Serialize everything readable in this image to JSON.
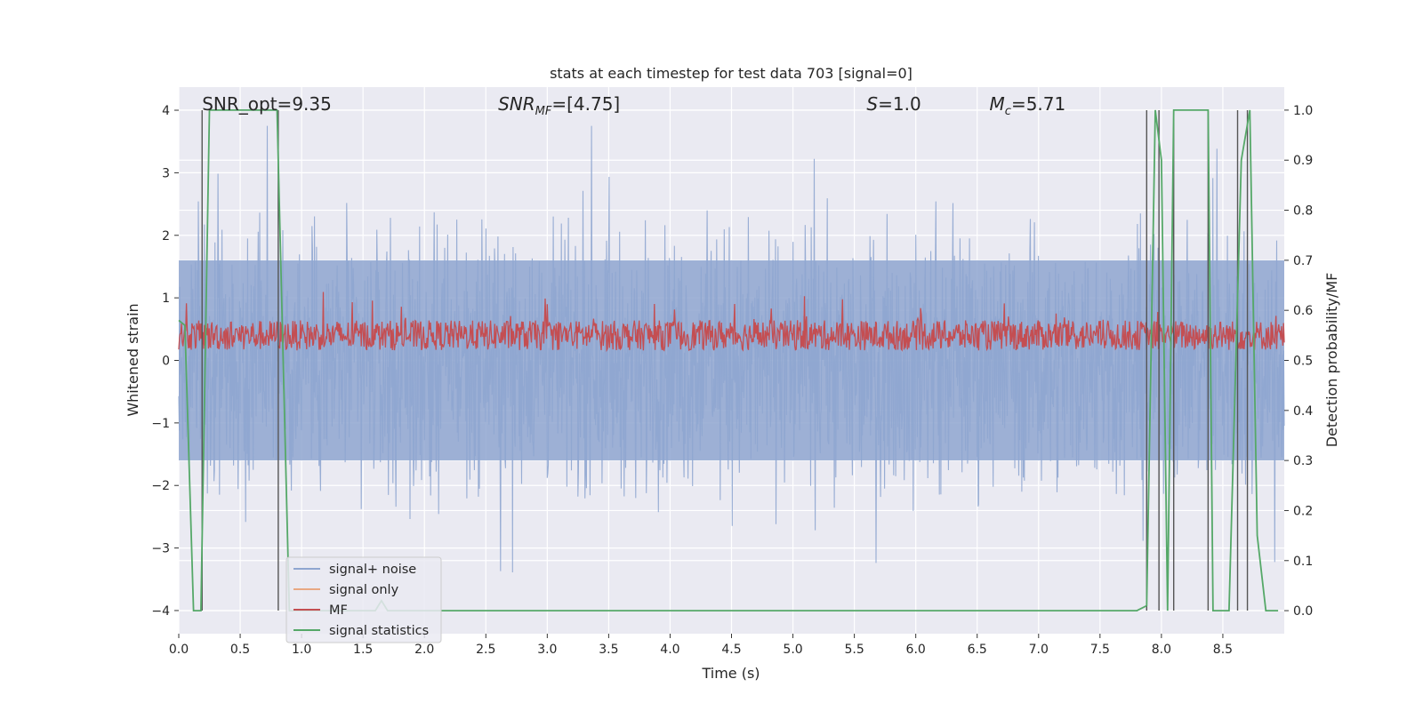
{
  "chart_data": {
    "type": "line",
    "title": "stats at each timestep for test data 703 [signal=0]",
    "xlabel": "Time (s)",
    "ylabel_left": "Whitened strain",
    "ylabel_right": "Detection probability/MF",
    "xlim": [
      0.0,
      9.0
    ],
    "ylim_left": [
      -4.37,
      4.37
    ],
    "ylim_right": [
      -0.046,
      1.046
    ],
    "x_ticks": [
      "0.0",
      "0.5",
      "1.0",
      "1.5",
      "2.0",
      "2.5",
      "3.0",
      "3.5",
      "4.0",
      "4.5",
      "5.0",
      "5.5",
      "6.0",
      "6.5",
      "7.0",
      "7.5",
      "8.0",
      "8.5"
    ],
    "y_ticks_left": [
      "4",
      "3",
      "2",
      "1",
      "0",
      "−1",
      "−2",
      "−3",
      "−4"
    ],
    "y_ticks_right": [
      "1.0",
      "0.9",
      "0.8",
      "0.7",
      "0.6",
      "0.5",
      "0.4",
      "0.3",
      "0.2",
      "0.1",
      "0.0"
    ],
    "grid": true,
    "legend_position": "lower-left",
    "annotations": [
      {
        "text": "SNR_opt=9.35",
        "x": 0.19
      },
      {
        "text": "SNR",
        "sub": "MF",
        "suffix": "=[4.75]",
        "italic": true,
        "x": 2.6
      },
      {
        "text": "S",
        "suffix": "=1.0",
        "italic": true,
        "x": 5.6
      },
      {
        "text": "M",
        "sub": "c",
        "suffix": "=5.71",
        "italic": true,
        "x": 6.6
      }
    ],
    "series": [
      {
        "name": "signal+ noise",
        "color": "#8fa6d0",
        "description_values": {
          "typical_range": [
            -1.6,
            1.6
          ],
          "extreme_range": [
            -4.0,
            3.8
          ]
        }
      },
      {
        "name": "signal only",
        "color": "#e8a883",
        "values": []
      },
      {
        "name": "MF",
        "color": "#c44e52",
        "axis": "right",
        "typical_range": [
          0.5,
          0.6
        ]
      },
      {
        "name": "signal statistics",
        "color": "#55a868",
        "axis": "right",
        "x": [
          0.0,
          0.05,
          0.12,
          0.18,
          0.25,
          0.8,
          0.9,
          0.95,
          1.6,
          1.65,
          1.7,
          7.8,
          7.88,
          7.95,
          8.0,
          8.05,
          8.1,
          8.2,
          8.38,
          8.42,
          8.55,
          8.65,
          8.72,
          8.78,
          8.85,
          8.95
        ],
        "values": [
          0.58,
          0.57,
          0.0,
          0.0,
          1.0,
          1.0,
          0.0,
          0.0,
          0.0,
          0.02,
          0.0,
          0.0,
          0.01,
          1.0,
          0.9,
          0.0,
          1.0,
          1.0,
          1.0,
          0.0,
          0.0,
          0.9,
          1.0,
          0.15,
          0.0,
          0.0
        ]
      },
      {
        "name": "vertical markers",
        "color": "#555555",
        "x": [
          0.19,
          0.81,
          7.88,
          7.98,
          8.1,
          8.38,
          8.62,
          8.7
        ]
      }
    ]
  }
}
